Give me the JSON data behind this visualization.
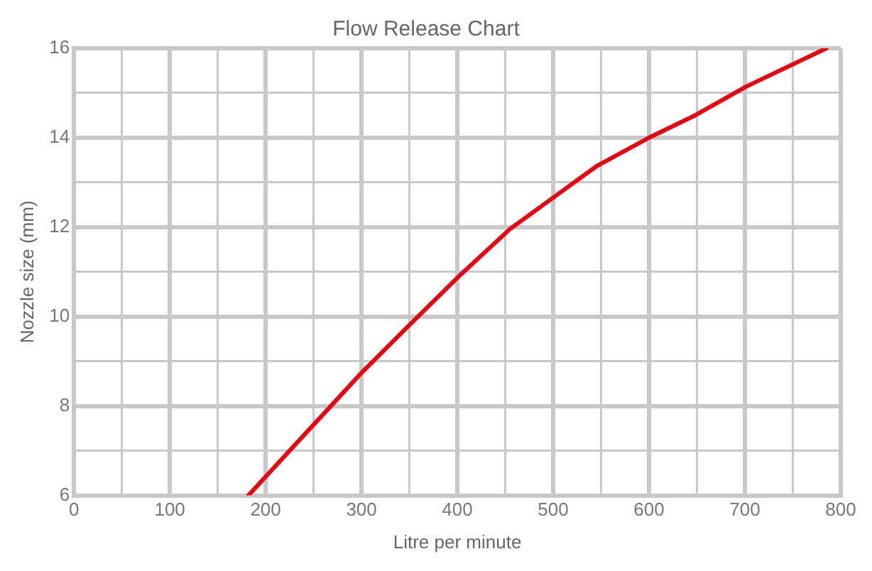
{
  "chart_data": {
    "type": "line",
    "title": "Flow Release Chart",
    "xlabel": "Litre per minute",
    "ylabel": "Nozzle size (mm)",
    "x": [
      182,
      299,
      350,
      404,
      455,
      545,
      599,
      648,
      701,
      785
    ],
    "series": [
      {
        "color": "#e30613",
        "values": [
          6,
          8.72,
          9.81,
          10.95,
          11.96,
          13.36,
          13.99,
          14.5,
          15.14,
          16
        ]
      }
    ],
    "xlim": [
      0,
      800
    ],
    "xticks": [
      0,
      {
        "value": 50,
        "label": null
      },
      100,
      {
        "value": 150,
        "label": null
      },
      200,
      {
        "value": 250,
        "label": null
      },
      300,
      {
        "value": 350,
        "label": null
      },
      400,
      {
        "value": 450,
        "label": null
      },
      500,
      {
        "value": 550,
        "label": null
      },
      600,
      {
        "value": 650,
        "label": null
      },
      700,
      {
        "value": 750,
        "label": null
      },
      800
    ],
    "ylim": [
      6,
      16
    ],
    "yticks": [
      6,
      {
        "value": 7,
        "label": null
      },
      8,
      {
        "value": 9,
        "label": null
      },
      10,
      {
        "value": 11,
        "label": null
      },
      12,
      {
        "value": 13,
        "label": null
      },
      14,
      {
        "value": 15,
        "label": null
      },
      16
    ],
    "grid": true,
    "legend": false,
    "marker": "none",
    "line_style": "solid"
  }
}
